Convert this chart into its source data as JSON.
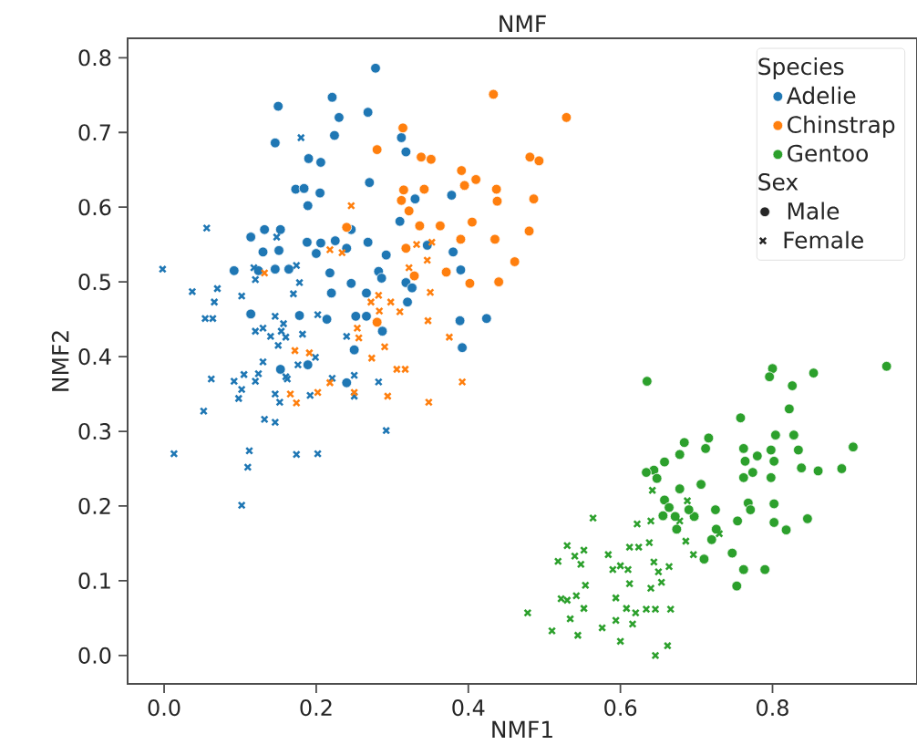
{
  "chart_data": {
    "type": "scatter",
    "title": "NMF",
    "xlabel": "NMF1",
    "ylabel": "NMF2",
    "legend_title": "Species",
    "annotations": [
      "Sex",
      "Male",
      "Female"
    ],
    "legend": "top right",
    "grid": false,
    "xlim": [
      -0.048,
      0.99
    ],
    "ylim": [
      -0.038,
      0.826
    ],
    "xticks": [
      {
        "value": 0,
        "label": "0.0"
      },
      0.2,
      0.4,
      0.6,
      0.8
    ],
    "yticks": [
      {
        "value": 0,
        "label": "0.0"
      },
      0.1,
      0.2,
      0.3,
      0.4,
      0.5,
      0.6,
      0.7,
      0.8
    ],
    "series": [
      {
        "name": "Adelie",
        "color": "#1f77b4",
        "marker": "circle",
        "x": [
          0.278,
          0.15,
          0.221,
          0.23,
          0.268,
          0.146,
          0.224,
          0.312,
          0.318,
          0.19,
          0.206,
          0.173,
          0.184,
          0.205,
          0.189,
          0.27,
          0.33,
          0.378,
          0.31,
          0.246,
          0.114,
          0.132,
          0.153,
          0.13,
          0.151,
          0.188,
          0.206,
          0.225,
          0.24,
          0.268,
          0.346,
          0.292,
          0.38,
          0.092,
          0.124,
          0.146,
          0.164,
          0.2,
          0.218,
          0.282,
          0.286,
          0.318,
          0.326,
          0.32,
          0.39,
          0.246,
          0.22,
          0.266,
          0.114,
          0.178,
          0.214,
          0.252,
          0.266,
          0.287,
          0.389,
          0.424,
          0.392,
          0.25,
          0.153,
          0.189,
          0.24
        ],
        "values": [
          0.786,
          0.735,
          0.747,
          0.72,
          0.727,
          0.686,
          0.696,
          0.693,
          0.674,
          0.665,
          0.66,
          0.624,
          0.625,
          0.619,
          0.602,
          0.633,
          0.611,
          0.616,
          0.581,
          0.57,
          0.56,
          0.57,
          0.57,
          0.54,
          0.542,
          0.553,
          0.552,
          0.555,
          0.545,
          0.553,
          0.549,
          0.536,
          0.54,
          0.515,
          0.515,
          0.517,
          0.517,
          0.538,
          0.512,
          0.514,
          0.505,
          0.499,
          0.492,
          0.473,
          0.516,
          0.498,
          0.485,
          0.485,
          0.457,
          0.455,
          0.45,
          0.454,
          0.454,
          0.434,
          0.448,
          0.451,
          0.412,
          0.409,
          0.383,
          0.389,
          0.365
        ]
      },
      {
        "color": "#1f77b4",
        "marker": "cross",
        "x": [
          -0.002,
          0.013,
          0.037,
          0.054,
          0.064,
          0.056,
          0.07,
          0.066,
          0.102,
          0.062,
          0.052,
          0.092,
          0.098,
          0.105,
          0.102,
          0.118,
          0.12,
          0.12,
          0.13,
          0.14,
          0.12,
          0.124,
          0.13,
          0.112,
          0.11,
          0.102,
          0.132,
          0.146,
          0.146,
          0.15,
          0.154,
          0.157,
          0.16,
          0.16,
          0.146,
          0.152,
          0.178,
          0.174,
          0.17,
          0.182,
          0.176,
          0.174,
          0.18,
          0.192,
          0.199,
          0.202,
          0.202,
          0.24,
          0.221,
          0.25,
          0.25,
          0.282,
          0.292,
          0.148,
          0.162
        ],
        "values": [
          0.517,
          0.27,
          0.487,
          0.451,
          0.451,
          0.572,
          0.491,
          0.473,
          0.481,
          0.37,
          0.327,
          0.367,
          0.344,
          0.376,
          0.356,
          0.519,
          0.503,
          0.434,
          0.438,
          0.427,
          0.367,
          0.377,
          0.393,
          0.274,
          0.252,
          0.201,
          0.316,
          0.312,
          0.454,
          0.415,
          0.434,
          0.444,
          0.426,
          0.373,
          0.35,
          0.339,
          0.499,
          0.522,
          0.484,
          0.43,
          0.389,
          0.269,
          0.693,
          0.348,
          0.399,
          0.27,
          0.456,
          0.427,
          0.371,
          0.375,
          0.347,
          0.366,
          0.301,
          0.56,
          0.37
        ]
      },
      {
        "name": "Chinstrap",
        "color": "#ff7f0e",
        "marker": "circle",
        "x": [
          0.433,
          0.529,
          0.314,
          0.28,
          0.338,
          0.351,
          0.391,
          0.41,
          0.395,
          0.437,
          0.438,
          0.481,
          0.493,
          0.486,
          0.342,
          0.315,
          0.312,
          0.322,
          0.24,
          0.336,
          0.363,
          0.405,
          0.39,
          0.435,
          0.318,
          0.48,
          0.461,
          0.371,
          0.402,
          0.44,
          0.329,
          0.28
        ],
        "values": [
          0.751,
          0.72,
          0.706,
          0.677,
          0.667,
          0.664,
          0.649,
          0.637,
          0.629,
          0.624,
          0.608,
          0.667,
          0.662,
          0.611,
          0.624,
          0.623,
          0.609,
          0.595,
          0.573,
          0.575,
          0.575,
          0.58,
          0.557,
          0.557,
          0.545,
          0.568,
          0.527,
          0.513,
          0.498,
          0.5,
          0.508,
          0.446
        ]
      },
      {
        "color": "#ff7f0e",
        "marker": "cross",
        "x": [
          0.246,
          0.218,
          0.234,
          0.132,
          0.332,
          0.346,
          0.322,
          0.272,
          0.282,
          0.298,
          0.31,
          0.283,
          0.35,
          0.352,
          0.254,
          0.256,
          0.29,
          0.273,
          0.347,
          0.375,
          0.306,
          0.317,
          0.392,
          0.348,
          0.294,
          0.25,
          0.218,
          0.202,
          0.174,
          0.166,
          0.172,
          0.191
        ],
        "values": [
          0.602,
          0.543,
          0.539,
          0.512,
          0.55,
          0.529,
          0.519,
          0.473,
          0.482,
          0.473,
          0.46,
          0.461,
          0.486,
          0.553,
          0.438,
          0.425,
          0.413,
          0.398,
          0.448,
          0.426,
          0.383,
          0.383,
          0.366,
          0.339,
          0.347,
          0.352,
          0.365,
          0.352,
          0.338,
          0.35,
          0.408,
          0.405
        ]
      },
      {
        "name": "Gentoo",
        "color": "#2ca02c",
        "marker": "circle",
        "x": [
          0.95,
          0.635,
          0.8,
          0.796,
          0.854,
          0.826,
          0.822,
          0.758,
          0.804,
          0.828,
          0.834,
          0.906,
          0.762,
          0.78,
          0.798,
          0.802,
          0.764,
          0.774,
          0.762,
          0.798,
          0.838,
          0.86,
          0.891,
          0.716,
          0.712,
          0.684,
          0.678,
          0.658,
          0.644,
          0.634,
          0.648,
          0.678,
          0.706,
          0.658,
          0.664,
          0.672,
          0.656,
          0.674,
          0.725,
          0.726,
          0.72,
          0.768,
          0.771,
          0.754,
          0.802,
          0.802,
          0.818,
          0.846,
          0.747,
          0.71,
          0.762,
          0.79,
          0.753,
          0.697,
          0.69
        ],
        "values": [
          0.387,
          0.367,
          0.384,
          0.373,
          0.378,
          0.361,
          0.33,
          0.318,
          0.295,
          0.295,
          0.275,
          0.279,
          0.277,
          0.267,
          0.275,
          0.26,
          0.26,
          0.245,
          0.238,
          0.238,
          0.251,
          0.247,
          0.25,
          0.291,
          0.277,
          0.285,
          0.269,
          0.259,
          0.248,
          0.245,
          0.237,
          0.223,
          0.229,
          0.208,
          0.198,
          0.186,
          0.187,
          0.169,
          0.195,
          0.169,
          0.155,
          0.204,
          0.195,
          0.18,
          0.203,
          0.178,
          0.168,
          0.183,
          0.137,
          0.129,
          0.115,
          0.115,
          0.093,
          0.186,
          0.195
        ]
      },
      {
        "color": "#2ca02c",
        "marker": "cross",
        "x": [
          0.564,
          0.642,
          0.622,
          0.64,
          0.688,
          0.678,
          0.686,
          0.696,
          0.73,
          0.638,
          0.612,
          0.624,
          0.6,
          0.584,
          0.59,
          0.61,
          0.612,
          0.594,
          0.644,
          0.65,
          0.664,
          0.654,
          0.64,
          0.518,
          0.53,
          0.54,
          0.552,
          0.548,
          0.554,
          0.522,
          0.53,
          0.542,
          0.552,
          0.478,
          0.51,
          0.534,
          0.544,
          0.576,
          0.594,
          0.6,
          0.608,
          0.616,
          0.62,
          0.634,
          0.646,
          0.666,
          0.646,
          0.662
        ],
        "values": [
          0.184,
          0.221,
          0.176,
          0.18,
          0.207,
          0.18,
          0.153,
          0.135,
          0.163,
          0.151,
          0.145,
          0.145,
          0.12,
          0.135,
          0.115,
          0.115,
          0.096,
          0.077,
          0.125,
          0.112,
          0.119,
          0.098,
          0.09,
          0.126,
          0.147,
          0.133,
          0.141,
          0.122,
          0.094,
          0.076,
          0.074,
          0.08,
          0.063,
          0.057,
          0.033,
          0.049,
          0.027,
          0.037,
          0.047,
          0.019,
          0.063,
          0.042,
          0.057,
          0.062,
          0.062,
          0.062,
          0.0,
          0.013
        ]
      }
    ]
  }
}
